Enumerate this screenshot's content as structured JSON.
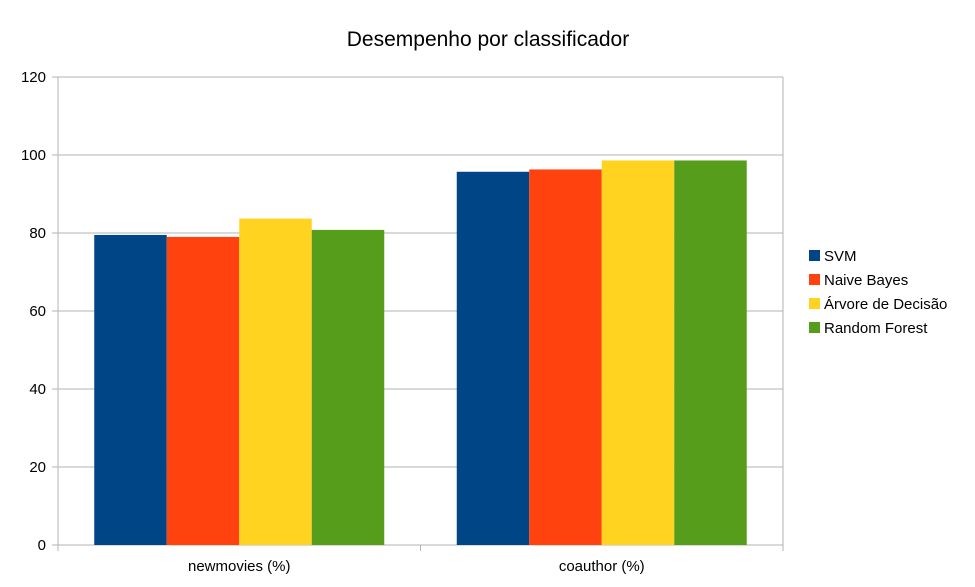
{
  "chart_data": {
    "type": "bar",
    "title": "Desempenho por classificador",
    "categories": [
      "newmovies (%)",
      "coauthor (%)"
    ],
    "series": [
      {
        "name": "SVM",
        "color": "#004586",
        "values": [
          79.5,
          95.7
        ]
      },
      {
        "name": "Naive Bayes",
        "color": "#ff420e",
        "values": [
          79.0,
          96.3
        ]
      },
      {
        "name": "Árvore de Decisão",
        "color": "#ffd320",
        "values": [
          83.7,
          98.6
        ]
      },
      {
        "name": "Random Forest",
        "color": "#579d1c",
        "values": [
          80.8,
          98.6
        ]
      }
    ],
    "ylim": [
      0,
      120
    ],
    "yticks": [
      "0",
      "20",
      "40",
      "60",
      "80",
      "100",
      "120"
    ],
    "grid": true,
    "legend_position": "right"
  }
}
